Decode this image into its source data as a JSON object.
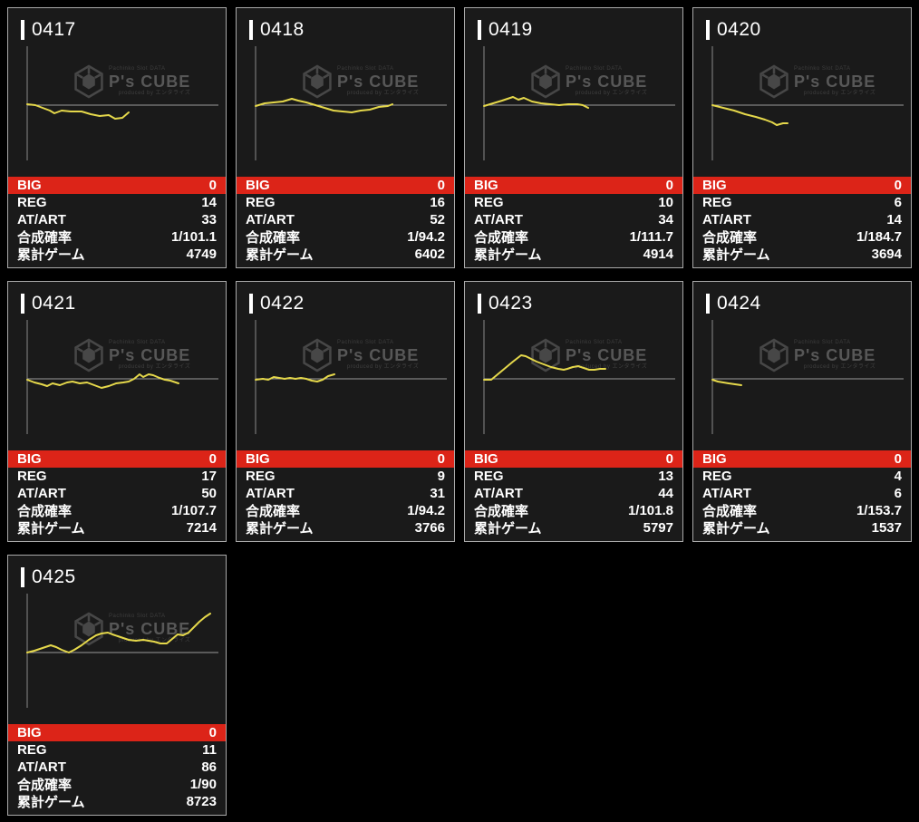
{
  "page": {
    "background": "#000000"
  },
  "watermark": {
    "top_text": "Pachinko Slot DATA",
    "brand": "P's CUBE",
    "bottom_text": "produced by エンタライズ"
  },
  "stat_labels": {
    "big": "BIG",
    "reg": "REG",
    "at_art": "AT/ART",
    "combined_rate": "合成確率",
    "total_games": "累計ゲーム"
  },
  "colors": {
    "accent_red": "#dc2418",
    "line_yellow": "#e5d84b",
    "card_border": "#a9a9a9",
    "baseline_axis": "#9a9a9a",
    "y_axis": "#8a8a8a",
    "text": "#ffffff"
  },
  "machines": [
    {
      "id": "0417",
      "big": 0,
      "reg": 14,
      "at_art": 33,
      "combined_rate": "1/101.1",
      "total_games": 4749,
      "slump_points": [
        [
          0,
          1
        ],
        [
          9,
          0
        ],
        [
          17,
          -3
        ],
        [
          25,
          -6
        ],
        [
          30,
          -9
        ],
        [
          38,
          -6
        ],
        [
          48,
          -7
        ],
        [
          60,
          -7
        ],
        [
          70,
          -10
        ],
        [
          80,
          -12
        ],
        [
          90,
          -11
        ],
        [
          97,
          -15
        ],
        [
          105,
          -14
        ],
        [
          112,
          -8
        ]
      ]
    },
    {
      "id": "0418",
      "big": 0,
      "reg": 16,
      "at_art": 52,
      "combined_rate": "1/94.2",
      "total_games": 6402,
      "slump_points": [
        [
          0,
          -1
        ],
        [
          10,
          2
        ],
        [
          20,
          3
        ],
        [
          30,
          4
        ],
        [
          40,
          7
        ],
        [
          47,
          5
        ],
        [
          56,
          3
        ],
        [
          66,
          0
        ],
        [
          76,
          -3
        ],
        [
          86,
          -6
        ],
        [
          96,
          -7
        ],
        [
          106,
          -8
        ],
        [
          116,
          -6
        ],
        [
          126,
          -5
        ],
        [
          136,
          -2
        ],
        [
          146,
          -1
        ],
        [
          151,
          1
        ]
      ]
    },
    {
      "id": "0419",
      "big": 0,
      "reg": 10,
      "at_art": 34,
      "combined_rate": "1/111.7",
      "total_games": 4914,
      "slump_points": [
        [
          0,
          -1
        ],
        [
          10,
          2
        ],
        [
          20,
          5
        ],
        [
          32,
          9
        ],
        [
          38,
          6
        ],
        [
          44,
          8
        ],
        [
          53,
          4
        ],
        [
          63,
          2
        ],
        [
          73,
          1
        ],
        [
          83,
          0
        ],
        [
          93,
          1
        ],
        [
          103,
          1
        ],
        [
          109,
          0
        ],
        [
          115,
          -3
        ]
      ]
    },
    {
      "id": "0420",
      "big": 0,
      "reg": 6,
      "at_art": 14,
      "combined_rate": "1/184.7",
      "total_games": 3694,
      "slump_points": [
        [
          0,
          0
        ],
        [
          12,
          -3
        ],
        [
          24,
          -6
        ],
        [
          36,
          -10
        ],
        [
          48,
          -13
        ],
        [
          58,
          -16
        ],
        [
          66,
          -19
        ],
        [
          71,
          -22
        ],
        [
          78,
          -20
        ],
        [
          83,
          -20
        ]
      ]
    },
    {
      "id": "0421",
      "big": 0,
      "reg": 17,
      "at_art": 50,
      "combined_rate": "1/107.7",
      "total_games": 7214,
      "slump_points": [
        [
          0,
          -1
        ],
        [
          8,
          -4
        ],
        [
          16,
          -6
        ],
        [
          22,
          -8
        ],
        [
          28,
          -5
        ],
        [
          36,
          -7
        ],
        [
          44,
          -4
        ],
        [
          50,
          -3
        ],
        [
          58,
          -5
        ],
        [
          66,
          -4
        ],
        [
          74,
          -7
        ],
        [
          82,
          -10
        ],
        [
          90,
          -8
        ],
        [
          98,
          -5
        ],
        [
          106,
          -4
        ],
        [
          112,
          -3
        ],
        [
          118,
          0
        ],
        [
          124,
          5
        ],
        [
          128,
          2
        ],
        [
          134,
          5
        ],
        [
          139,
          4
        ],
        [
          146,
          1
        ],
        [
          152,
          -1
        ],
        [
          158,
          -2
        ],
        [
          167,
          -5
        ]
      ]
    },
    {
      "id": "0422",
      "big": 0,
      "reg": 9,
      "at_art": 31,
      "combined_rate": "1/94.2",
      "total_games": 3766,
      "slump_points": [
        [
          0,
          -1
        ],
        [
          8,
          0
        ],
        [
          14,
          -1
        ],
        [
          20,
          2
        ],
        [
          26,
          1
        ],
        [
          32,
          0
        ],
        [
          38,
          1
        ],
        [
          44,
          0
        ],
        [
          50,
          1
        ],
        [
          56,
          0
        ],
        [
          62,
          -2
        ],
        [
          68,
          -3
        ],
        [
          74,
          -1
        ],
        [
          80,
          3
        ],
        [
          87,
          5
        ]
      ]
    },
    {
      "id": "0423",
      "big": 0,
      "reg": 13,
      "at_art": 44,
      "combined_rate": "1/101.8",
      "total_games": 5797,
      "slump_points": [
        [
          0,
          -1
        ],
        [
          8,
          -1
        ],
        [
          14,
          4
        ],
        [
          20,
          9
        ],
        [
          26,
          14
        ],
        [
          32,
          19
        ],
        [
          41,
          26
        ],
        [
          46,
          25
        ],
        [
          52,
          22
        ],
        [
          58,
          19
        ],
        [
          66,
          16
        ],
        [
          74,
          13
        ],
        [
          82,
          11
        ],
        [
          88,
          10
        ],
        [
          92,
          11
        ],
        [
          98,
          13
        ],
        [
          104,
          14
        ],
        [
          110,
          12
        ],
        [
          116,
          10
        ],
        [
          122,
          10
        ],
        [
          128,
          11
        ],
        [
          134,
          11
        ]
      ]
    },
    {
      "id": "0424",
      "big": 0,
      "reg": 4,
      "at_art": 6,
      "combined_rate": "1/153.7",
      "total_games": 1537,
      "slump_points": [
        [
          0,
          -1
        ],
        [
          6,
          -3
        ],
        [
          12,
          -4
        ],
        [
          18,
          -5
        ],
        [
          25,
          -6
        ],
        [
          32,
          -7
        ]
      ]
    },
    {
      "id": "0425",
      "big": 0,
      "reg": 11,
      "at_art": 86,
      "combined_rate": "1/90",
      "total_games": 8723,
      "slump_points": [
        [
          0,
          0
        ],
        [
          8,
          2
        ],
        [
          14,
          4
        ],
        [
          20,
          6
        ],
        [
          26,
          8
        ],
        [
          32,
          6
        ],
        [
          38,
          3
        ],
        [
          46,
          0
        ],
        [
          52,
          3
        ],
        [
          60,
          8
        ],
        [
          68,
          14
        ],
        [
          76,
          19
        ],
        [
          82,
          21
        ],
        [
          89,
          22
        ],
        [
          94,
          20
        ],
        [
          100,
          18
        ],
        [
          106,
          16
        ],
        [
          112,
          14
        ],
        [
          120,
          13
        ],
        [
          128,
          14
        ],
        [
          134,
          13
        ],
        [
          140,
          12
        ],
        [
          147,
          10
        ],
        [
          154,
          10
        ],
        [
          160,
          15
        ],
        [
          166,
          20
        ],
        [
          172,
          19
        ],
        [
          178,
          22
        ],
        [
          184,
          28
        ],
        [
          190,
          34
        ],
        [
          196,
          39
        ],
        [
          202,
          43
        ]
      ]
    }
  ]
}
